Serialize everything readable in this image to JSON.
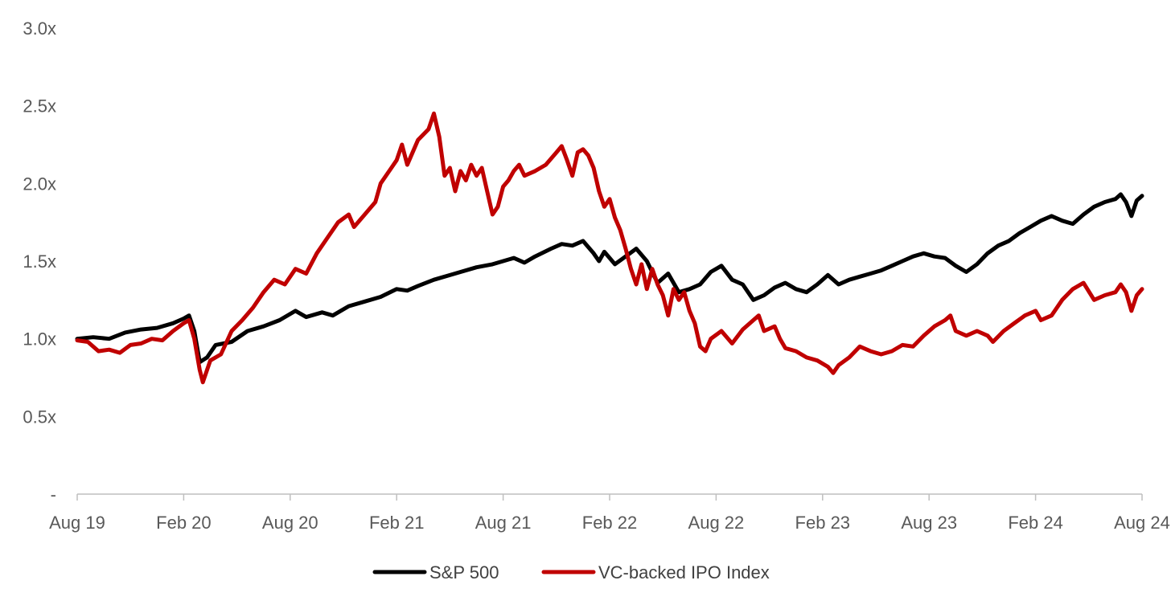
{
  "chart_data": {
    "type": "line",
    "title": "",
    "xlabel": "",
    "ylabel": "",
    "x_ticks": [
      "Aug 19",
      "Feb 20",
      "Aug 20",
      "Feb 21",
      "Aug 21",
      "Feb 22",
      "Aug 22",
      "Feb 23",
      "Aug 23",
      "Feb 24",
      "Aug 24"
    ],
    "y_ticks": [
      {
        "value": 0,
        "label": "-"
      },
      {
        "value": 0.5,
        "label": "0.5x"
      },
      {
        "value": 1.0,
        "label": "1.0x"
      },
      {
        "value": 1.5,
        "label": "1.5x"
      },
      {
        "value": 2.0,
        "label": "2.0x"
      },
      {
        "value": 2.5,
        "label": "2.5x"
      },
      {
        "value": 3.0,
        "label": "3.0x"
      }
    ],
    "ylim": [
      0,
      3.0
    ],
    "xlim": [
      0,
      10
    ],
    "grid": false,
    "legend_position": "bottom",
    "series": [
      {
        "name": "S&P 500",
        "color": "#000000",
        "points": [
          [
            0,
            1.0
          ],
          [
            0.15,
            1.01
          ],
          [
            0.3,
            1.0
          ],
          [
            0.45,
            1.04
          ],
          [
            0.6,
            1.06
          ],
          [
            0.75,
            1.07
          ],
          [
            0.9,
            1.1
          ],
          [
            1.0,
            1.13
          ],
          [
            1.05,
            1.15
          ],
          [
            1.1,
            1.05
          ],
          [
            1.15,
            0.85
          ],
          [
            1.22,
            0.88
          ],
          [
            1.3,
            0.96
          ],
          [
            1.45,
            0.98
          ],
          [
            1.6,
            1.05
          ],
          [
            1.75,
            1.08
          ],
          [
            1.9,
            1.12
          ],
          [
            2.05,
            1.18
          ],
          [
            2.15,
            1.14
          ],
          [
            2.3,
            1.17
          ],
          [
            2.4,
            1.15
          ],
          [
            2.55,
            1.21
          ],
          [
            2.7,
            1.24
          ],
          [
            2.85,
            1.27
          ],
          [
            3.0,
            1.32
          ],
          [
            3.1,
            1.31
          ],
          [
            3.2,
            1.34
          ],
          [
            3.35,
            1.38
          ],
          [
            3.5,
            1.41
          ],
          [
            3.6,
            1.43
          ],
          [
            3.75,
            1.46
          ],
          [
            3.9,
            1.48
          ],
          [
            4.0,
            1.5
          ],
          [
            4.1,
            1.52
          ],
          [
            4.2,
            1.49
          ],
          [
            4.3,
            1.53
          ],
          [
            4.45,
            1.58
          ],
          [
            4.55,
            1.61
          ],
          [
            4.65,
            1.6
          ],
          [
            4.75,
            1.63
          ],
          [
            4.85,
            1.55
          ],
          [
            4.9,
            1.5
          ],
          [
            4.95,
            1.56
          ],
          [
            5.05,
            1.48
          ],
          [
            5.15,
            1.53
          ],
          [
            5.25,
            1.58
          ],
          [
            5.35,
            1.5
          ],
          [
            5.45,
            1.36
          ],
          [
            5.55,
            1.42
          ],
          [
            5.65,
            1.3
          ],
          [
            5.75,
            1.32
          ],
          [
            5.85,
            1.35
          ],
          [
            5.95,
            1.43
          ],
          [
            6.05,
            1.47
          ],
          [
            6.15,
            1.38
          ],
          [
            6.25,
            1.35
          ],
          [
            6.35,
            1.25
          ],
          [
            6.45,
            1.28
          ],
          [
            6.55,
            1.33
          ],
          [
            6.65,
            1.36
          ],
          [
            6.75,
            1.32
          ],
          [
            6.85,
            1.3
          ],
          [
            6.95,
            1.35
          ],
          [
            7.05,
            1.41
          ],
          [
            7.15,
            1.35
          ],
          [
            7.25,
            1.38
          ],
          [
            7.35,
            1.4
          ],
          [
            7.45,
            1.42
          ],
          [
            7.55,
            1.44
          ],
          [
            7.65,
            1.47
          ],
          [
            7.75,
            1.5
          ],
          [
            7.85,
            1.53
          ],
          [
            7.95,
            1.55
          ],
          [
            8.05,
            1.53
          ],
          [
            8.15,
            1.52
          ],
          [
            8.25,
            1.47
          ],
          [
            8.35,
            1.43
          ],
          [
            8.45,
            1.48
          ],
          [
            8.55,
            1.55
          ],
          [
            8.65,
            1.6
          ],
          [
            8.75,
            1.63
          ],
          [
            8.85,
            1.68
          ],
          [
            8.95,
            1.72
          ],
          [
            9.05,
            1.76
          ],
          [
            9.15,
            1.79
          ],
          [
            9.25,
            1.76
          ],
          [
            9.35,
            1.74
          ],
          [
            9.45,
            1.8
          ],
          [
            9.55,
            1.85
          ],
          [
            9.65,
            1.88
          ],
          [
            9.75,
            1.9
          ],
          [
            9.8,
            1.93
          ],
          [
            9.85,
            1.88
          ],
          [
            9.9,
            1.79
          ],
          [
            9.95,
            1.89
          ],
          [
            10.0,
            1.92
          ]
        ]
      },
      {
        "name": "VC-backed IPO Index",
        "color": "#c00000",
        "points": [
          [
            0,
            0.99
          ],
          [
            0.1,
            0.98
          ],
          [
            0.2,
            0.92
          ],
          [
            0.3,
            0.93
          ],
          [
            0.4,
            0.91
          ],
          [
            0.5,
            0.96
          ],
          [
            0.6,
            0.97
          ],
          [
            0.7,
            1.0
          ],
          [
            0.8,
            0.99
          ],
          [
            0.9,
            1.05
          ],
          [
            1.0,
            1.1
          ],
          [
            1.05,
            1.12
          ],
          [
            1.1,
            1.0
          ],
          [
            1.15,
            0.8
          ],
          [
            1.18,
            0.72
          ],
          [
            1.25,
            0.86
          ],
          [
            1.35,
            0.9
          ],
          [
            1.45,
            1.05
          ],
          [
            1.55,
            1.12
          ],
          [
            1.65,
            1.2
          ],
          [
            1.75,
            1.3
          ],
          [
            1.85,
            1.38
          ],
          [
            1.95,
            1.35
          ],
          [
            2.05,
            1.45
          ],
          [
            2.15,
            1.42
          ],
          [
            2.25,
            1.55
          ],
          [
            2.35,
            1.65
          ],
          [
            2.45,
            1.75
          ],
          [
            2.55,
            1.8
          ],
          [
            2.6,
            1.72
          ],
          [
            2.7,
            1.8
          ],
          [
            2.8,
            1.88
          ],
          [
            2.85,
            2.0
          ],
          [
            2.95,
            2.1
          ],
          [
            3.0,
            2.15
          ],
          [
            3.05,
            2.25
          ],
          [
            3.1,
            2.12
          ],
          [
            3.2,
            2.28
          ],
          [
            3.3,
            2.35
          ],
          [
            3.35,
            2.45
          ],
          [
            3.4,
            2.3
          ],
          [
            3.45,
            2.05
          ],
          [
            3.5,
            2.1
          ],
          [
            3.55,
            1.95
          ],
          [
            3.6,
            2.08
          ],
          [
            3.65,
            2.02
          ],
          [
            3.7,
            2.12
          ],
          [
            3.75,
            2.05
          ],
          [
            3.8,
            2.1
          ],
          [
            3.85,
            1.95
          ],
          [
            3.9,
            1.8
          ],
          [
            3.95,
            1.85
          ],
          [
            4.0,
            1.98
          ],
          [
            4.05,
            2.02
          ],
          [
            4.1,
            2.08
          ],
          [
            4.15,
            2.12
          ],
          [
            4.2,
            2.05
          ],
          [
            4.3,
            2.08
          ],
          [
            4.4,
            2.12
          ],
          [
            4.5,
            2.2
          ],
          [
            4.55,
            2.24
          ],
          [
            4.6,
            2.15
          ],
          [
            4.65,
            2.05
          ],
          [
            4.7,
            2.2
          ],
          [
            4.75,
            2.22
          ],
          [
            4.8,
            2.18
          ],
          [
            4.85,
            2.1
          ],
          [
            4.9,
            1.95
          ],
          [
            4.95,
            1.85
          ],
          [
            5.0,
            1.9
          ],
          [
            5.05,
            1.78
          ],
          [
            5.1,
            1.7
          ],
          [
            5.15,
            1.58
          ],
          [
            5.2,
            1.45
          ],
          [
            5.25,
            1.35
          ],
          [
            5.3,
            1.48
          ],
          [
            5.35,
            1.32
          ],
          [
            5.4,
            1.45
          ],
          [
            5.45,
            1.35
          ],
          [
            5.5,
            1.28
          ],
          [
            5.55,
            1.15
          ],
          [
            5.6,
            1.32
          ],
          [
            5.65,
            1.25
          ],
          [
            5.7,
            1.3
          ],
          [
            5.75,
            1.18
          ],
          [
            5.8,
            1.1
          ],
          [
            5.85,
            0.95
          ],
          [
            5.9,
            0.92
          ],
          [
            5.95,
            1.0
          ],
          [
            6.05,
            1.05
          ],
          [
            6.15,
            0.97
          ],
          [
            6.25,
            1.06
          ],
          [
            6.35,
            1.12
          ],
          [
            6.4,
            1.15
          ],
          [
            6.45,
            1.05
          ],
          [
            6.55,
            1.08
          ],
          [
            6.6,
            1.0
          ],
          [
            6.65,
            0.94
          ],
          [
            6.75,
            0.92
          ],
          [
            6.85,
            0.88
          ],
          [
            6.95,
            0.86
          ],
          [
            7.05,
            0.82
          ],
          [
            7.1,
            0.78
          ],
          [
            7.15,
            0.83
          ],
          [
            7.25,
            0.88
          ],
          [
            7.35,
            0.95
          ],
          [
            7.45,
            0.92
          ],
          [
            7.55,
            0.9
          ],
          [
            7.65,
            0.92
          ],
          [
            7.75,
            0.96
          ],
          [
            7.85,
            0.95
          ],
          [
            7.95,
            1.02
          ],
          [
            8.05,
            1.08
          ],
          [
            8.15,
            1.12
          ],
          [
            8.2,
            1.15
          ],
          [
            8.25,
            1.05
          ],
          [
            8.35,
            1.02
          ],
          [
            8.45,
            1.05
          ],
          [
            8.55,
            1.02
          ],
          [
            8.6,
            0.98
          ],
          [
            8.7,
            1.05
          ],
          [
            8.8,
            1.1
          ],
          [
            8.9,
            1.15
          ],
          [
            9.0,
            1.18
          ],
          [
            9.05,
            1.12
          ],
          [
            9.15,
            1.15
          ],
          [
            9.25,
            1.25
          ],
          [
            9.35,
            1.32
          ],
          [
            9.45,
            1.36
          ],
          [
            9.55,
            1.25
          ],
          [
            9.65,
            1.28
          ],
          [
            9.75,
            1.3
          ],
          [
            9.8,
            1.35
          ],
          [
            9.85,
            1.3
          ],
          [
            9.9,
            1.18
          ],
          [
            9.95,
            1.28
          ],
          [
            10.0,
            1.32
          ]
        ]
      }
    ]
  }
}
